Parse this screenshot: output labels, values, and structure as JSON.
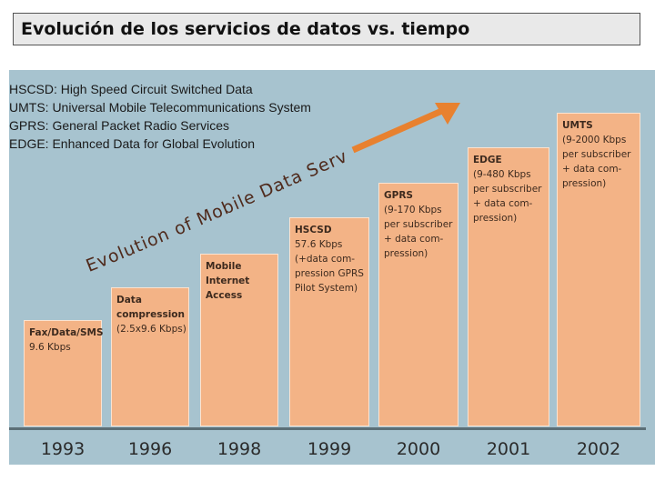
{
  "title": "Evolución de los servicios de datos vs. tiempo",
  "legend": [
    "HSCSD: High Speed Circuit Switched Data",
    "UMTS: Universal Mobile Telecommunications System",
    "GPRS: General Packet Radio Services",
    "EDGE: Enhanced Data for Global Evolution"
  ],
  "curve_label": "Evolution of Mobile Data Services",
  "colors": {
    "panel": "#a7c3cf",
    "bar": "#f3b386",
    "arrow": "#e8812f"
  },
  "stages": [
    {
      "year": "1993",
      "name": "Fax/Data/SMS",
      "desc": "9.6 Kbps"
    },
    {
      "year": "1996",
      "name": "Data\ncompression",
      "desc": "(2.5x9.6 Kbps)"
    },
    {
      "year": "1998",
      "name": "Mobile\nInternet\nAccess",
      "desc": ""
    },
    {
      "year": "1999",
      "name": "HSCSD",
      "desc": "57.6 Kbps\n(+data com-\npression GPRS\nPilot System)"
    },
    {
      "year": "2000",
      "name": "GPRS",
      "desc": "(9-170 Kbps\nper subscriber\n+ data com-\npression)"
    },
    {
      "year": "2001",
      "name": "EDGE",
      "desc": "(9-480 Kbps\nper subscriber\n+ data com-\npression)"
    },
    {
      "year": "2002",
      "name": "UMTS",
      "desc": "(9-2000 Kbps\nper subscriber\n+ data com-\npression)"
    }
  ]
}
